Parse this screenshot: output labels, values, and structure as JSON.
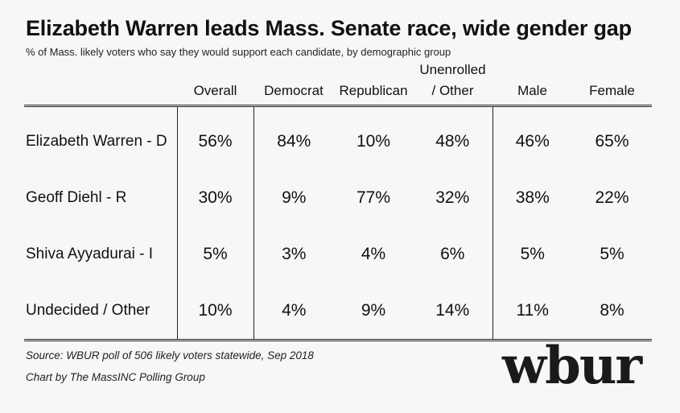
{
  "title": "Elizabeth Warren leads Mass. Senate race, wide gender gap",
  "subtitle": "% of Mass. likely voters who say they would support each candidate, by demographic group",
  "source": "Source: WBUR poll of 506 likely voters statewide, Sep 2018",
  "credit": "Chart by The MassINC Polling Group",
  "logo_text": "wbur",
  "chart_data": {
    "type": "table",
    "title": "Elizabeth Warren leads Mass. Senate race, wide gender gap",
    "subtitle": "% of Mass. likely voters who say they would support each candidate, by demographic group",
    "columns": [
      {
        "label_line1": "",
        "label_line2": "Overall"
      },
      {
        "label_line1": "",
        "label_line2": "Democrat"
      },
      {
        "label_line1": "",
        "label_line2": "Republican"
      },
      {
        "label_line1": "Unenrolled",
        "label_line2": "/ Other"
      },
      {
        "label_line1": "",
        "label_line2": "Male"
      },
      {
        "label_line1": "",
        "label_line2": "Female"
      }
    ],
    "rows": [
      {
        "candidate": "Elizabeth Warren - D",
        "values": [
          "56%",
          "84%",
          "10%",
          "48%",
          "46%",
          "65%"
        ]
      },
      {
        "candidate": "Geoff Diehl - R",
        "values": [
          "30%",
          "9%",
          "77%",
          "32%",
          "38%",
          "22%"
        ]
      },
      {
        "candidate": "Shiva Ayyadurai - I",
        "values": [
          "5%",
          "3%",
          "4%",
          "6%",
          "5%",
          "5%"
        ]
      },
      {
        "candidate": "Undecided / Other",
        "values": [
          "10%",
          "4%",
          "9%",
          "14%",
          "11%",
          "8%"
        ]
      }
    ]
  }
}
